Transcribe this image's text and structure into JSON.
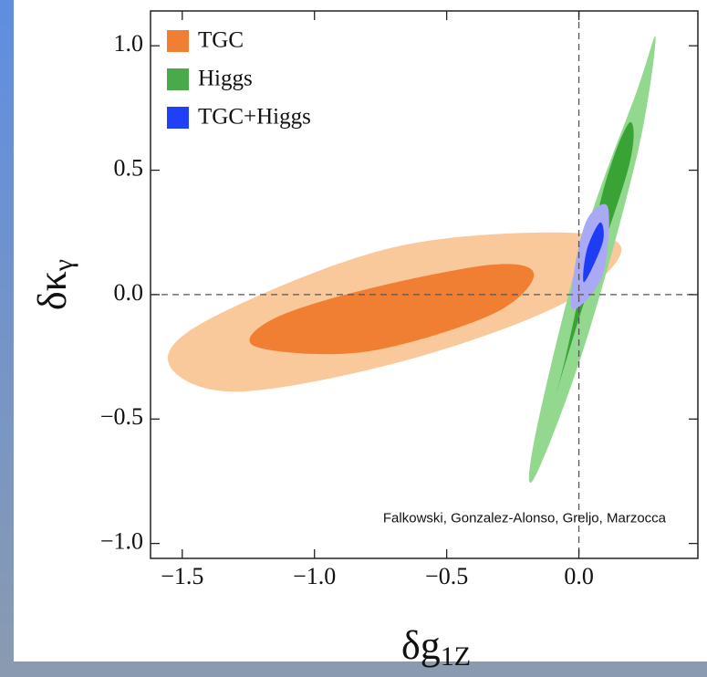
{
  "chart_data": {
    "type": "contour",
    "x_label": {
      "main": "δg",
      "sub": "1Z"
    },
    "y_label": {
      "main": "δκ",
      "sub": "γ"
    },
    "annotation": "Falkowski, Gonzalez-Alonso, Greljo, Marzocca",
    "xlim": [
      -1.62,
      0.45
    ],
    "ylim": [
      -1.06,
      1.14
    ],
    "xticks": [
      {
        "value": -1.5,
        "label": "−1.5"
      },
      {
        "value": -1.0,
        "label": "−1.0"
      },
      {
        "value": -0.5,
        "label": "−0.5"
      },
      {
        "value": 0,
        "label": "0.0"
      }
    ],
    "yticks": [
      {
        "value": -1.0,
        "label": "−1.0"
      },
      {
        "value": -0.5,
        "label": "−0.5"
      },
      {
        "value": 0,
        "label": "0.0"
      },
      {
        "value": 0.5,
        "label": "0.5"
      },
      {
        "value": 1.0,
        "label": "1.0"
      }
    ],
    "reference_lines": {
      "x": 0,
      "y": 0
    },
    "legend": "top-left",
    "series": [
      {
        "name": "TGC",
        "color": "#f07f33",
        "regions": [
          {
            "color": "#f9c99b",
            "x": [
              -1.55,
              -1.29,
              -0.64,
              -0.05,
              0.16,
              -0.12,
              -0.74,
              -1.4
            ],
            "y": [
              -0.28,
              -0.39,
              -0.26,
              -0.03,
              0.19,
              0.25,
              0.18,
              -0.1
            ]
          },
          {
            "color": "#f07f33",
            "x": [
              -1.22,
              -0.81,
              -0.33,
              -0.17,
              -0.33,
              -0.81,
              -1.16
            ],
            "y": [
              -0.21,
              -0.23,
              -0.08,
              0.08,
              0.12,
              0.02,
              -0.1
            ]
          }
        ]
      },
      {
        "name": "Higgs",
        "color": "#4aa94a",
        "regions": [
          {
            "color": "#92d88e",
            "x": [
              -0.17,
              0.02,
              0.22,
              0.29,
              0.22,
              0.02,
              -0.16
            ],
            "y": [
              -0.74,
              -0.21,
              0.56,
              1.03,
              0.82,
              0.23,
              -0.54
            ]
          },
          {
            "color": "#3aa335",
            "x": [
              -0.09,
              0.02,
              0.19,
              0.19,
              0.09,
              -0.05
            ],
            "y": [
              -0.41,
              -0.03,
              0.52,
              0.69,
              0.41,
              -0.25
            ]
          }
        ]
      },
      {
        "name": "TGC+Higgs",
        "color": "#2040f5",
        "regions": [
          {
            "color": "#a9a9f5",
            "x": [
              -0.02,
              0.09,
              0.11,
              0.03,
              -0.02
            ],
            "y": [
              -0.06,
              0.08,
              0.35,
              0.3,
              0.08
            ]
          },
          {
            "color": "#1f3cf5",
            "x": [
              0.02,
              0.09,
              0.08,
              0.03
            ],
            "y": [
              0.05,
              0.21,
              0.29,
              0.18
            ]
          }
        ]
      }
    ]
  }
}
